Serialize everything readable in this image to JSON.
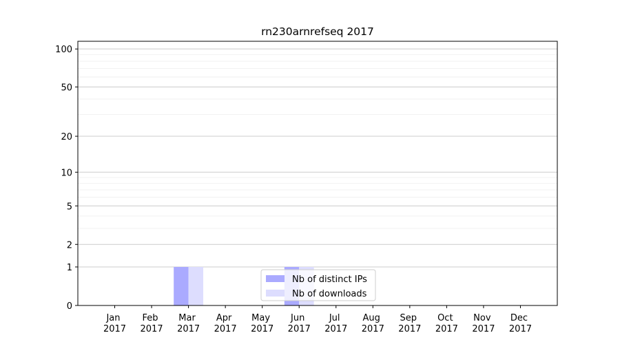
{
  "chart_data": {
    "type": "bar",
    "title": "rn230arnrefseq 2017",
    "categories": [
      "Jan 2017",
      "Feb 2017",
      "Mar 2017",
      "Apr 2017",
      "May 2017",
      "Jun 2017",
      "Jul 2017",
      "Aug 2017",
      "Sep 2017",
      "Oct 2017",
      "Nov 2017",
      "Dec 2017"
    ],
    "series": [
      {
        "name": "Nb of distinct IPs",
        "color": "#aaaaff",
        "values": [
          0,
          0,
          1,
          0,
          0,
          1,
          0,
          0,
          0,
          0,
          0,
          0
        ]
      },
      {
        "name": "Nb of downloads",
        "color": "#ddddfe",
        "values": [
          0,
          0,
          1,
          0,
          0,
          1,
          0,
          0,
          0,
          0,
          0,
          0
        ]
      }
    ],
    "yscale": "log1p",
    "ylim": [
      0,
      115
    ],
    "yticks": [
      0,
      1,
      2,
      5,
      10,
      20,
      50,
      100
    ],
    "yminorticks": [
      3,
      4,
      6,
      7,
      8,
      9,
      30,
      40,
      60,
      70,
      80,
      90
    ],
    "grid": true,
    "legend": "lower center"
  }
}
